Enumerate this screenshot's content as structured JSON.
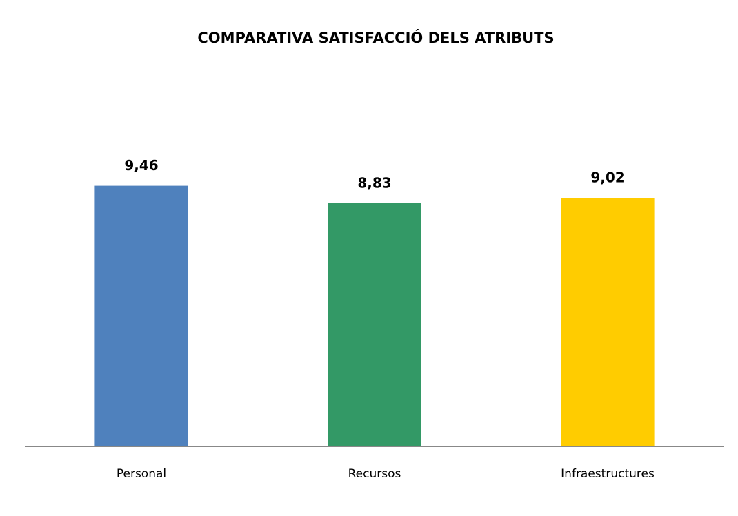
{
  "chart_data": {
    "type": "bar",
    "title": "COMPARATIVA SATISFACCIÓ DELS ATRIBUTS",
    "categories": [
      "Personal",
      "Recursos",
      "Infraestructures"
    ],
    "values": [
      9.46,
      8.83,
      9.02
    ],
    "value_labels": [
      "9,46",
      "8,83",
      "9,02"
    ],
    "colors": [
      "#4f81bd",
      "#339966",
      "#ffcc00"
    ],
    "ylim": [
      0,
      12
    ]
  }
}
